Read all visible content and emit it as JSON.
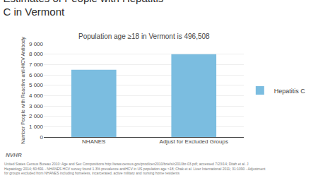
{
  "chart_data": {
    "type": "bar",
    "title": "Estimates of People with Hepatitis\nC in Vermont",
    "subtitle": "Population age ≥18 in Vermont is 496,508",
    "categories": [
      "NHANES",
      "Adjust for Excluded Groups"
    ],
    "series": [
      {
        "name": "Hepatitis C",
        "color": "#7BBDE0",
        "values": [
          6500,
          8000
        ]
      }
    ],
    "ylabel": "Number People with Reactive anti-HCV Antibody",
    "ylim": [
      0,
      9000
    ],
    "yticks": [
      0,
      {
        "value": 1000,
        "label": "1 000"
      },
      {
        "value": 2000,
        "label": "2 000"
      },
      {
        "value": 3000,
        "label": "3 000"
      },
      {
        "value": 4000,
        "label": "4 000"
      },
      {
        "value": 5000,
        "label": "5 000"
      },
      {
        "value": 6000,
        "label": "6 000"
      },
      {
        "value": 7000,
        "label": "7 000"
      },
      {
        "value": 8000,
        "label": "8 000"
      },
      {
        "value": 9000,
        "label": "9 000"
      }
    ],
    "grid": true,
    "legend": "right",
    "annotations": [
      "NVHR",
      "United States Census Bureau 2010: Age and Sex Compositions http://www.census.gov/prod/cen2010/briefs/c2010br-03.pdf; accessed 7/23/14; Ditah et al. J\nHepatology 2014; 60:691 - NHANES HCV survey found 1.3% prevalence antiHCV in US population age >18; Chak et al. Liver International 2011; 31:1090 - Adjustment\nfor groups excluded from NHANES including homeless, incarcerated, active military and nursing home residents"
    ]
  }
}
